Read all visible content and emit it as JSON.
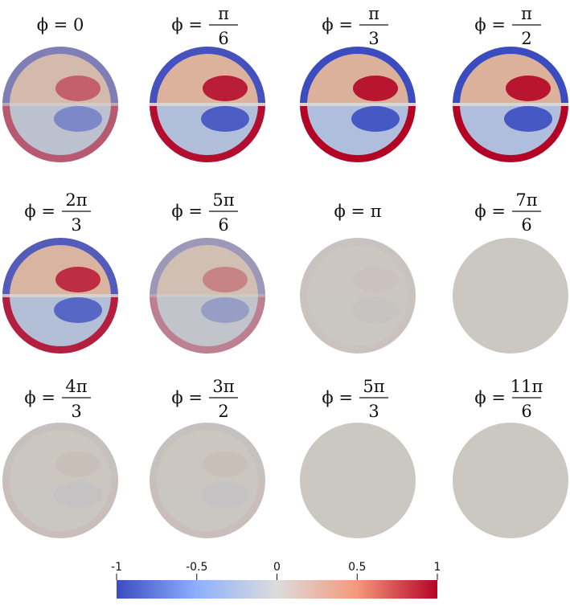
{
  "panels": [
    {
      "label": "ϕ = 0"
    },
    {
      "label": {
        "lhs": "ϕ =",
        "num": "π",
        "den": "6"
      }
    },
    {
      "label": {
        "lhs": "ϕ =",
        "num": "π",
        "den": "3"
      }
    },
    {
      "label": {
        "lhs": "ϕ =",
        "num": "π",
        "den": "2"
      }
    },
    {
      "label": {
        "lhs": "ϕ =",
        "num": "2π",
        "den": "3"
      }
    },
    {
      "label": {
        "lhs": "ϕ =",
        "num": "5π",
        "den": "6"
      }
    },
    {
      "label": "ϕ = π"
    },
    {
      "label": {
        "lhs": "ϕ =",
        "num": "7π",
        "den": "6"
      }
    },
    {
      "label": {
        "lhs": "ϕ =",
        "num": "4π",
        "den": "3"
      }
    },
    {
      "label": {
        "lhs": "ϕ =",
        "num": "3π",
        "den": "2"
      }
    },
    {
      "label": {
        "lhs": "ϕ =",
        "num": "5π",
        "den": "3"
      }
    },
    {
      "label": {
        "lhs": "ϕ =",
        "num": "11π",
        "den": "6"
      }
    }
  ],
  "colorbar": {
    "lim": [
      -1,
      1
    ],
    "ticks": [
      -1,
      -0.5,
      0,
      0.5,
      1
    ]
  }
}
